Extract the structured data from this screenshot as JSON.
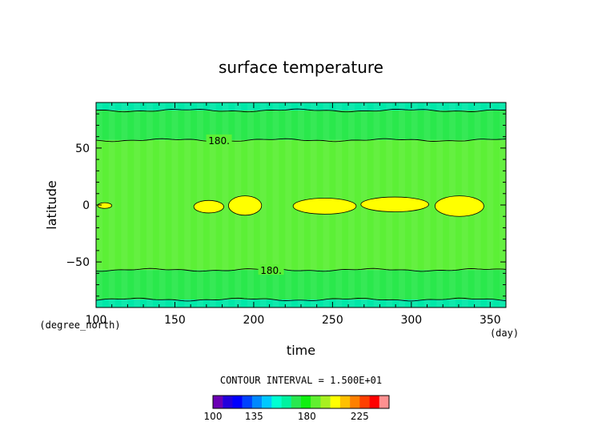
{
  "chart_data": {
    "type": "heatmap",
    "title": "surface temperature",
    "xlabel": "time",
    "ylabel": "latitude",
    "x_unit": "(day)",
    "y_unit": "(degree_north)",
    "xlim": [
      100,
      360
    ],
    "ylim": [
      -90,
      90
    ],
    "x_ticks": [
      100,
      150,
      200,
      250,
      300,
      350
    ],
    "y_ticks": [
      -50,
      0,
      50
    ],
    "contour_interval_text": "CONTOUR INTERVAL = 1.500E+01",
    "contour_label": "180.",
    "contour_levels": [
      180,
      195
    ],
    "colorbar": {
      "min": 100,
      "max": 250,
      "tick_labels": [
        "100",
        "135",
        "180",
        "225"
      ],
      "tick_values": [
        100,
        135,
        180,
        225
      ],
      "colors": [
        "#6b00b4",
        "#2200dc",
        "#0000ff",
        "#0042ff",
        "#0088ff",
        "#00c8ff",
        "#00ffd2",
        "#00f2a0",
        "#28e850",
        "#10f010",
        "#60f030",
        "#a8f020",
        "#ffff00",
        "#ffc000",
        "#ff8000",
        "#ff4000",
        "#ff0000",
        "#ff9090"
      ]
    },
    "bands": [
      {
        "lat_from": 83,
        "lat_to": 90,
        "value": 170,
        "color": "#00e8a8"
      },
      {
        "lat_from": 57,
        "lat_to": 83,
        "value": 185,
        "color": "#2ae84c"
      },
      {
        "lat_from": -57,
        "lat_to": 57,
        "value": 200,
        "color": "#5cf036"
      },
      {
        "lat_from": -83,
        "lat_to": -57,
        "value": 185,
        "color": "#2ae84c"
      },
      {
        "lat_from": -90,
        "lat_to": -83,
        "value": 170,
        "color": "#00e8a8"
      }
    ],
    "warm_patches": [
      {
        "day_from": 101,
        "day_to": 110,
        "lat_from": -3,
        "lat_to": 2
      },
      {
        "day_from": 162,
        "day_to": 181,
        "lat_from": -7,
        "lat_to": 4
      },
      {
        "day_from": 184,
        "day_to": 205,
        "lat_from": -9,
        "lat_to": 8
      },
      {
        "day_from": 225,
        "day_to": 265,
        "lat_from": -8,
        "lat_to": 6
      },
      {
        "day_from": 268,
        "day_to": 311,
        "lat_from": -6,
        "lat_to": 7
      },
      {
        "day_from": 315,
        "day_to": 346,
        "lat_from": -10,
        "lat_to": 8
      }
    ]
  }
}
